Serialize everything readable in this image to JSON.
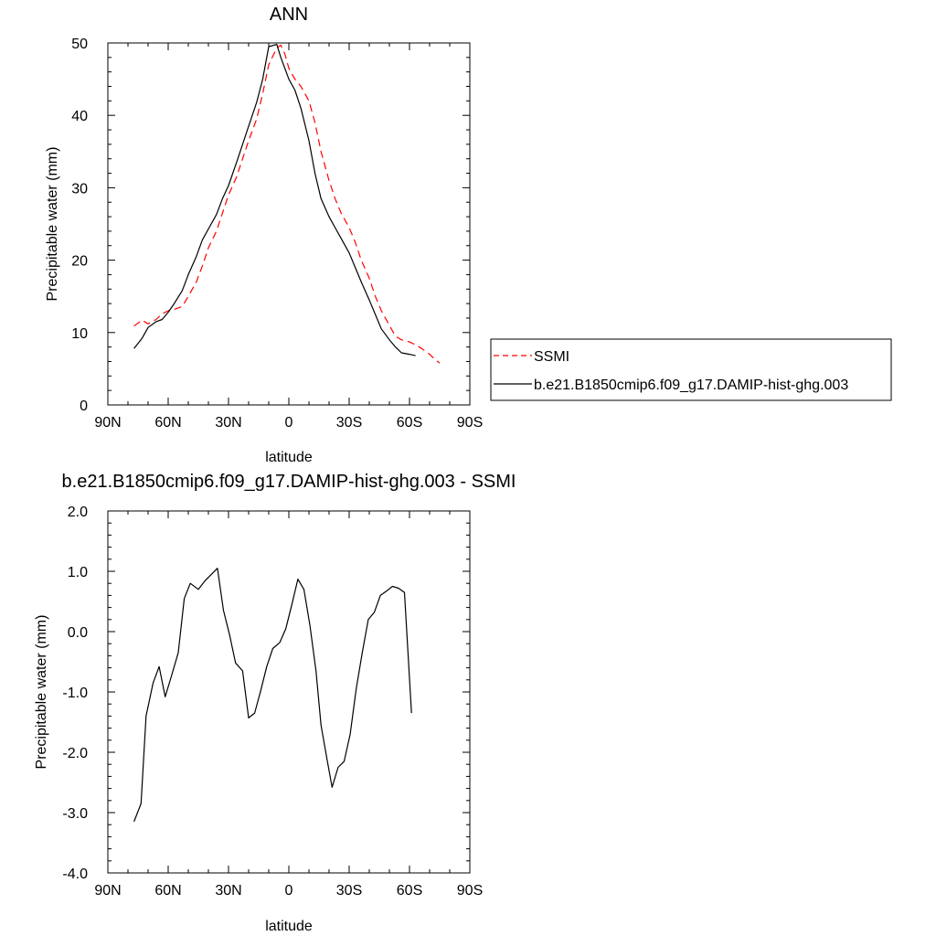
{
  "chart_data": [
    {
      "type": "line",
      "title": "ANN",
      "xlabel": "latitude",
      "ylabel": "Precipitable water (mm)",
      "xlim": [
        90,
        -90
      ],
      "ylim": [
        0,
        50
      ],
      "xticks": [
        90,
        60,
        30,
        0,
        -30,
        -60,
        -90
      ],
      "xtick_labels": [
        "90N",
        "60N",
        "30N",
        "0",
        "30S",
        "60S",
        "90S"
      ],
      "yticks": [
        0,
        10,
        20,
        30,
        40,
        50
      ],
      "ytick_labels": [
        "0",
        "10",
        "20",
        "30",
        "40",
        "50"
      ],
      "legend_position": "right",
      "series": [
        {
          "name": "SSMI",
          "color": "#ff0000",
          "dash": true,
          "x": [
            77,
            73,
            70,
            66,
            63,
            60,
            57,
            53,
            50,
            46,
            43,
            40,
            36,
            33,
            30,
            26,
            23,
            20,
            16,
            13,
            10,
            6,
            4,
            2,
            0,
            -3,
            -6,
            -10,
            -13,
            -16,
            -20,
            -23,
            -26,
            -30,
            -33,
            -36,
            -40,
            -43,
            -46,
            -50,
            -53,
            -56,
            -60,
            -63,
            -66,
            -70,
            -73,
            -75
          ],
          "y": [
            10.9,
            11.7,
            11.2,
            11.8,
            12.6,
            13.0,
            13.2,
            13.6,
            15.0,
            17.0,
            19.2,
            21.7,
            24.0,
            26.5,
            29.0,
            31.5,
            34.0,
            36.5,
            39.5,
            43.0,
            47.0,
            49.3,
            49.7,
            48.5,
            46.5,
            45.0,
            44.0,
            42.0,
            39.0,
            35.0,
            31.0,
            28.5,
            26.5,
            24.5,
            22.5,
            20.0,
            17.5,
            15.0,
            13.0,
            11.0,
            9.5,
            9.0,
            8.7,
            8.3,
            7.8,
            7.0,
            6.2,
            5.8
          ]
        },
        {
          "name": "b.e21.B1850cmip6.f09_g17.DAMIP-hist-ghg.003",
          "color": "#000000",
          "dash": false,
          "x": [
            77,
            73,
            70,
            66,
            63,
            60,
            57,
            53,
            50,
            46,
            43,
            40,
            36,
            33,
            30,
            26,
            23,
            20,
            16,
            13,
            10,
            6,
            4,
            2,
            0,
            -3,
            -6,
            -10,
            -13,
            -16,
            -20,
            -23,
            -26,
            -30,
            -33,
            -36,
            -40,
            -43,
            -46,
            -50,
            -53,
            -56,
            -60,
            -63
          ],
          "y": [
            7.8,
            9.2,
            10.7,
            11.5,
            11.8,
            12.8,
            14.0,
            15.8,
            18.0,
            20.5,
            22.8,
            24.3,
            26.3,
            28.5,
            30.3,
            33.5,
            36.0,
            38.5,
            41.8,
            45.0,
            49.5,
            49.8,
            48.0,
            46.5,
            45.0,
            43.5,
            41.0,
            36.5,
            32.0,
            28.5,
            26.0,
            24.5,
            23.0,
            21.0,
            19.0,
            17.0,
            14.5,
            12.5,
            10.5,
            9.0,
            8.0,
            7.2,
            7.0,
            6.8
          ]
        }
      ]
    },
    {
      "type": "line",
      "title": "b.e21.B1850cmip6.f09_g17.DAMIP-hist-ghg.003 - SSMI",
      "xlabel": "latitude",
      "ylabel": "Precipitable water (mm)",
      "xlim": [
        90,
        -90
      ],
      "ylim": [
        -4.0,
        2.0
      ],
      "xticks": [
        90,
        60,
        30,
        0,
        -30,
        -60,
        -90
      ],
      "xtick_labels": [
        "90N",
        "60N",
        "30N",
        "0",
        "30S",
        "60S",
        "90S"
      ],
      "yticks": [
        2.0,
        1.0,
        0.0,
        -1.0,
        -2.0,
        -3.0,
        -4.0
      ],
      "ytick_labels": [
        "2.0",
        "1.0",
        "0.0",
        "-1.0",
        "-2.0",
        "-3.0",
        "-4.0"
      ],
      "series": [
        {
          "color": "#000000",
          "dash": false,
          "x": [
            77,
            73.5,
            71,
            67.5,
            64.5,
            61.5,
            58.5,
            55,
            52,
            49,
            45,
            41.5,
            38.5,
            35.5,
            32.5,
            29.5,
            26.5,
            23,
            20,
            17,
            14,
            11,
            8,
            4.5,
            1.5,
            -1.5,
            -4.5,
            -7.5,
            -10.5,
            -13.5,
            -16,
            -19,
            -21.5,
            -24.5,
            -27.5,
            -30.5,
            -33.5,
            -36.5,
            -39.5,
            -42.5,
            -45.5,
            -48.5,
            -51.5,
            -54.5,
            -57.5,
            -61
          ],
          "y": [
            -3.15,
            -2.85,
            -1.4,
            -0.85,
            -0.58,
            -1.08,
            -0.75,
            -0.35,
            0.55,
            0.8,
            0.7,
            0.85,
            0.95,
            1.05,
            0.35,
            -0.05,
            -0.52,
            -0.65,
            -1.43,
            -1.35,
            -0.98,
            -0.58,
            -0.28,
            -0.18,
            0.05,
            0.45,
            0.87,
            0.7,
            0.1,
            -0.65,
            -1.55,
            -2.12,
            -2.58,
            -2.25,
            -2.15,
            -1.7,
            -0.95,
            -0.35,
            0.2,
            0.32,
            0.6,
            0.67,
            0.75,
            0.72,
            0.65,
            -1.35
          ]
        }
      ]
    }
  ]
}
